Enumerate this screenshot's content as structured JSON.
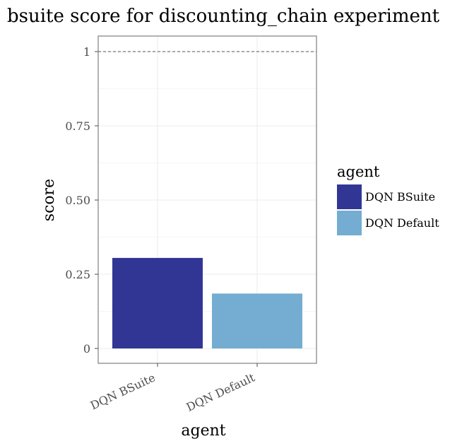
{
  "chart_data": {
    "type": "bar",
    "title": "bsuite score for discounting_chain experiment",
    "xlabel": "agent",
    "ylabel": "score",
    "categories": [
      "DQN BSuite",
      "DQN Default"
    ],
    "values": [
      0.305,
      0.185
    ],
    "ylim": [
      -0.05,
      1.05
    ],
    "yticks": [
      0,
      0.25,
      0.5,
      0.75,
      1
    ],
    "ytick_labels": [
      "0",
      "0.25",
      "0.50",
      "0.75",
      "1"
    ],
    "reference_line": 1,
    "grid": true,
    "legend": {
      "title": "agent",
      "position": "right",
      "entries": [
        {
          "label": "DQN BSuite",
          "color": "#313695"
        },
        {
          "label": "DQN Default",
          "color": "#74add1"
        }
      ]
    },
    "colors": [
      "#313695",
      "#74add1"
    ]
  }
}
